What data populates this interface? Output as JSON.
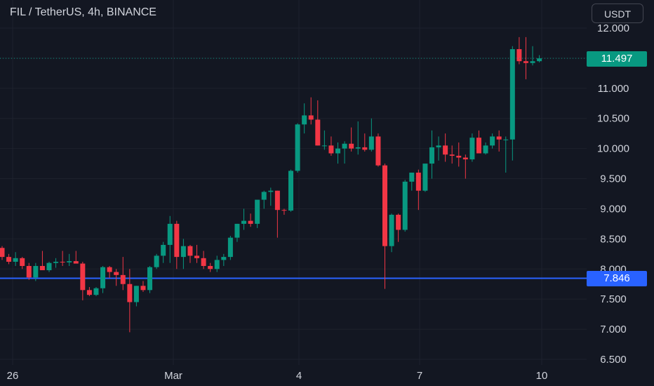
{
  "header": {
    "symbol_title": "FIL / TetherUS, 4h, BINANCE",
    "currency_label": "USDT"
  },
  "price_labels": {
    "last_price": "11.497",
    "horizontal_line": "7.846"
  },
  "colors": {
    "background": "#131722",
    "grid": "#1e222d",
    "up": "#089981",
    "down": "#f23645",
    "horizontal_line": "#2962ff",
    "axis_text": "#d1d4dc"
  },
  "chart_data": {
    "type": "candlestick",
    "symbol": "FIL / TetherUS",
    "interval": "4h",
    "exchange": "BINANCE",
    "y_ticks": [
      "6.500",
      "7.000",
      "7.500",
      "8.000",
      "8.500",
      "9.000",
      "9.500",
      "10.000",
      "10.500",
      "11.000",
      "11.500",
      "12.000"
    ],
    "x_ticks": [
      "26",
      "Mar",
      "4",
      "7",
      "10"
    ],
    "ylim": [
      6.5,
      12.0
    ],
    "last_price": 11.497,
    "horizontal_line": 7.846,
    "grid": true,
    "candles": [
      [
        8.35,
        8.38,
        8.15,
        8.2
      ],
      [
        8.2,
        8.25,
        8.08,
        8.12
      ],
      [
        8.12,
        8.28,
        8.05,
        8.18
      ],
      [
        8.18,
        8.2,
        8.0,
        8.05
      ],
      [
        8.05,
        8.1,
        7.82,
        7.86
      ],
      [
        7.86,
        8.1,
        7.8,
        8.05
      ],
      [
        8.05,
        8.3,
        8.0,
        7.98
      ],
      [
        7.98,
        8.12,
        7.95,
        8.1
      ],
      [
        8.1,
        8.18,
        8.02,
        8.12
      ],
      [
        8.12,
        8.3,
        8.05,
        8.11
      ],
      [
        8.11,
        8.25,
        8.05,
        8.13
      ],
      [
        8.13,
        8.3,
        8.1,
        8.09
      ],
      [
        8.09,
        8.12,
        7.48,
        7.65
      ],
      [
        7.65,
        7.7,
        7.55,
        7.57
      ],
      [
        7.57,
        7.7,
        7.55,
        7.68
      ],
      [
        7.68,
        8.05,
        7.6,
        8.03
      ],
      [
        8.03,
        8.05,
        7.85,
        7.95
      ],
      [
        7.95,
        8.0,
        7.72,
        7.9
      ],
      [
        7.9,
        8.2,
        7.65,
        7.75
      ],
      [
        7.75,
        8.0,
        6.95,
        7.45
      ],
      [
        7.45,
        7.72,
        7.38,
        7.72
      ],
      [
        7.72,
        7.8,
        7.62,
        7.65
      ],
      [
        7.65,
        8.05,
        7.6,
        8.03
      ],
      [
        8.03,
        8.25,
        8.0,
        8.22
      ],
      [
        8.22,
        8.45,
        8.1,
        8.4
      ],
      [
        8.4,
        8.88,
        8.1,
        8.75
      ],
      [
        8.75,
        8.8,
        8.0,
        8.2
      ],
      [
        8.2,
        8.5,
        8.0,
        8.38
      ],
      [
        8.38,
        8.4,
        8.1,
        8.22
      ],
      [
        8.22,
        8.4,
        8.1,
        8.18
      ],
      [
        8.18,
        8.3,
        8.0,
        8.05
      ],
      [
        8.05,
        8.1,
        7.95,
        8.0
      ],
      [
        8.0,
        8.22,
        7.95,
        8.15
      ],
      [
        8.15,
        8.25,
        8.05,
        8.2
      ],
      [
        8.2,
        8.55,
        8.15,
        8.52
      ],
      [
        8.52,
        8.75,
        8.45,
        8.75
      ],
      [
        8.75,
        9.0,
        8.65,
        8.8
      ],
      [
        8.8,
        8.92,
        8.7,
        8.75
      ],
      [
        8.75,
        9.1,
        8.68,
        9.15
      ],
      [
        9.15,
        9.3,
        9.0,
        9.28
      ],
      [
        9.28,
        9.35,
        9.05,
        9.3
      ],
      [
        9.3,
        9.3,
        8.52,
        8.98
      ],
      [
        8.98,
        9.0,
        8.9,
        8.97
      ],
      [
        8.97,
        9.65,
        8.95,
        9.63
      ],
      [
        9.63,
        10.42,
        9.6,
        10.4
      ],
      [
        10.4,
        10.75,
        10.25,
        10.55
      ],
      [
        10.55,
        10.85,
        10.4,
        10.48
      ],
      [
        10.48,
        10.8,
        10.05,
        10.05
      ],
      [
        10.05,
        10.3,
        9.98,
        10.05
      ],
      [
        10.05,
        10.2,
        9.88,
        9.92
      ],
      [
        9.92,
        10.1,
        9.75,
        10.0
      ],
      [
        10.0,
        10.12,
        9.75,
        10.08
      ],
      [
        10.08,
        10.35,
        9.95,
        10.0
      ],
      [
        10.0,
        10.45,
        9.9,
        10.02
      ],
      [
        10.02,
        10.25,
        9.95,
        9.98
      ],
      [
        9.98,
        10.5,
        9.95,
        10.2
      ],
      [
        10.2,
        10.25,
        9.7,
        9.72
      ],
      [
        9.72,
        9.75,
        7.67,
        8.38
      ],
      [
        8.38,
        8.92,
        8.28,
        8.9
      ],
      [
        8.9,
        8.92,
        8.45,
        8.65
      ],
      [
        8.65,
        9.48,
        8.62,
        9.45
      ],
      [
        9.45,
        9.6,
        9.3,
        9.6
      ],
      [
        9.6,
        9.65,
        8.98,
        9.3
      ],
      [
        9.3,
        9.7,
        9.28,
        9.75
      ],
      [
        9.75,
        10.3,
        9.5,
        10.02
      ],
      [
        10.02,
        10.2,
        9.8,
        10.05
      ],
      [
        10.05,
        10.25,
        9.78,
        9.9
      ],
      [
        9.9,
        10.05,
        9.75,
        9.88
      ],
      [
        9.88,
        10.1,
        9.7,
        9.85
      ],
      [
        9.85,
        9.9,
        9.5,
        9.82
      ],
      [
        9.82,
        10.25,
        9.78,
        10.18
      ],
      [
        10.18,
        10.3,
        9.95,
        9.92
      ],
      [
        9.92,
        10.1,
        9.9,
        10.05
      ],
      [
        10.05,
        10.25,
        10.0,
        10.2
      ],
      [
        10.2,
        10.3,
        9.95,
        10.15
      ],
      [
        10.15,
        10.2,
        9.6,
        10.15
      ],
      [
        10.15,
        11.7,
        9.8,
        11.65
      ],
      [
        11.65,
        11.85,
        11.4,
        11.45
      ],
      [
        11.45,
        11.85,
        11.15,
        11.42
      ],
      [
        11.42,
        11.7,
        11.38,
        11.45
      ],
      [
        11.45,
        11.55,
        11.43,
        11.497
      ]
    ]
  }
}
